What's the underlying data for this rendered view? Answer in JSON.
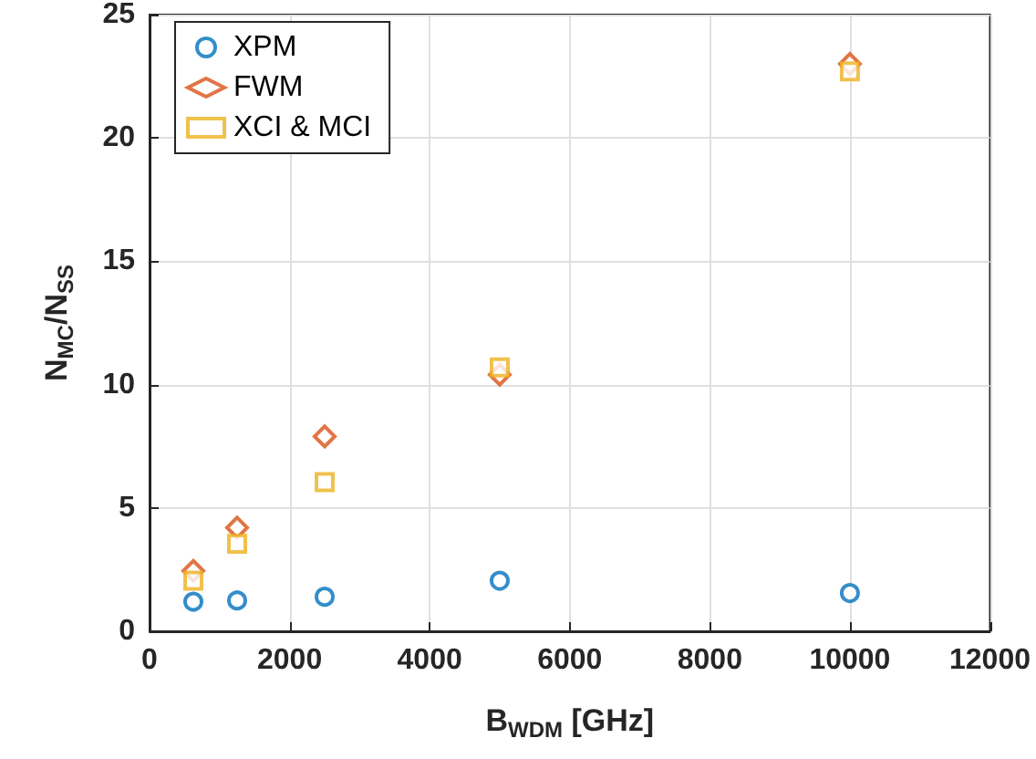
{
  "chart_data": {
    "type": "scatter",
    "xlabel": "B$_{WDM}$ [GHz]",
    "ylabel": "N$_{MC}$/N$_{SS}$",
    "x": [
      625,
      1250,
      2500,
      5000,
      10000
    ],
    "series": [
      {
        "name": "XPM",
        "color": "#0072bd",
        "marker": "circle",
        "values": [
          1.2,
          1.25,
          1.4,
          2.05,
          1.55
        ]
      },
      {
        "name": "FWM",
        "color": "#d95319",
        "marker": "diamond",
        "values": [
          2.45,
          4.2,
          7.9,
          10.4,
          23.0
        ]
      },
      {
        "name": "XCI & MCI",
        "color": "#edb120",
        "marker": "square",
        "values": [
          2.05,
          3.55,
          6.05,
          10.7,
          22.7
        ]
      }
    ],
    "xlim": [
      0,
      12000
    ],
    "xticks": [
      0,
      2000,
      4000,
      6000,
      8000,
      10000,
      12000
    ],
    "ylim": [
      0,
      25
    ],
    "yticks": [
      0,
      5,
      10,
      15,
      20,
      25
    ],
    "grid": true,
    "legend": "top left"
  }
}
